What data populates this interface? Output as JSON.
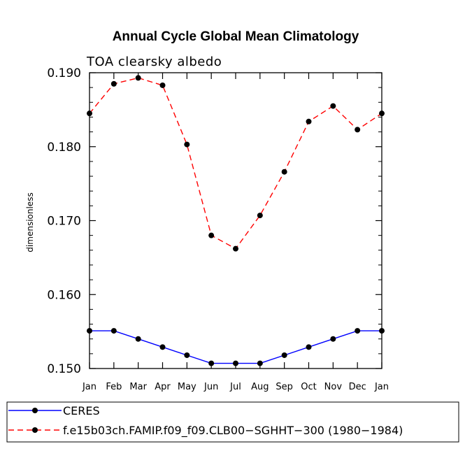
{
  "chart_data": {
    "type": "line",
    "title": "Annual Cycle Global Mean Climatology",
    "subtitle": "TOA clearsky albedo",
    "xlabel": "",
    "ylabel": "dimensionless",
    "categories": [
      "Jan",
      "Feb",
      "Mar",
      "Apr",
      "May",
      "Jun",
      "Jul",
      "Aug",
      "Sep",
      "Oct",
      "Nov",
      "Dec",
      "Jan"
    ],
    "ylim": [
      0.15,
      0.19
    ],
    "yticks": [
      "0.150",
      "0.160",
      "0.170",
      "0.180",
      "0.190"
    ],
    "series": [
      {
        "name": "CERES",
        "color": "#0000ff",
        "style": "solid",
        "values": [
          0.1551,
          0.1551,
          0.154,
          0.1529,
          0.1518,
          0.1507,
          0.1507,
          0.1507,
          0.1518,
          0.1529,
          0.154,
          0.1551,
          0.1551
        ]
      },
      {
        "name": "f.e15b03ch.FAMIP.f09_f09.CLB00−SGHHT−300 (1980−1984)",
        "color": "#ff0000",
        "style": "dashed",
        "values": [
          0.1845,
          0.1885,
          0.1893,
          0.1883,
          0.1803,
          0.168,
          0.1662,
          0.1707,
          0.1766,
          0.1834,
          0.1855,
          0.1823,
          0.1845
        ]
      }
    ],
    "legend": "bottom"
  }
}
